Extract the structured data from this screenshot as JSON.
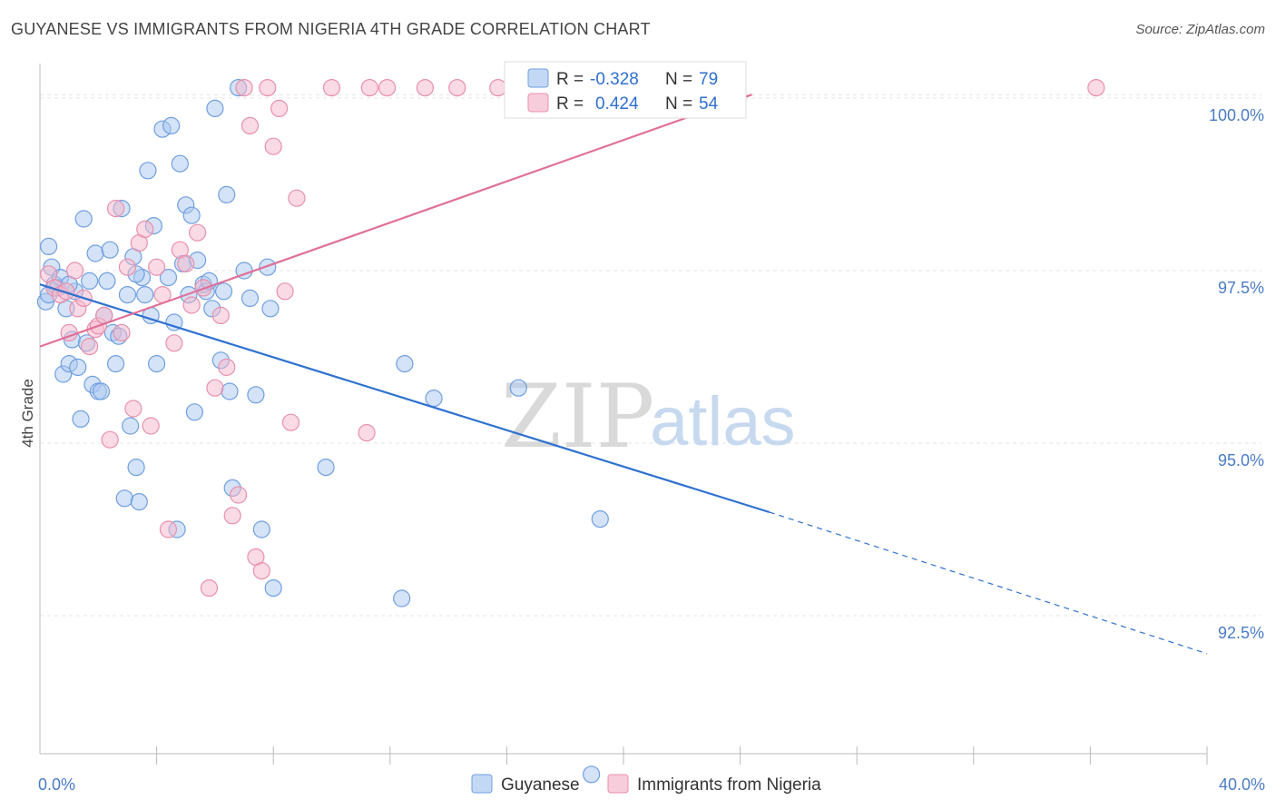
{
  "title": "GUYANESE VS IMMIGRANTS FROM NIGERIA 4TH GRADE CORRELATION CHART",
  "source": "Source: ZipAtlas.com",
  "watermark": {
    "zip": "ZIP",
    "atlas": "atlas"
  },
  "colors": {
    "blue_fill": "#aac8f0",
    "blue_stroke": "#6f9fe0",
    "blue_line": "#2f72d0",
    "pink_fill": "#f5b8cc",
    "pink_stroke": "#e890ac",
    "pink_line": "#e07098"
  },
  "legend": {
    "rows": [
      {
        "r_label": "R =",
        "r_value": "-0.328",
        "n_label": "N =",
        "n_value": "79"
      },
      {
        "r_label": "R =",
        "r_value": "0.424",
        "n_label": "N =",
        "n_value": "54"
      }
    ]
  },
  "chart_data": {
    "type": "scatter",
    "ylabel": "4th Grade",
    "xlim": [
      0,
      40
    ],
    "ylim": [
      90.5,
      100.5
    ],
    "x_tick_labels": [
      {
        "value": 0,
        "label": "0.0%"
      },
      {
        "value": 40,
        "label": "40.0%"
      }
    ],
    "x_minor_ticks": [
      4,
      8,
      12,
      16,
      20,
      24,
      28,
      32,
      36,
      40
    ],
    "y_ticks": [
      {
        "value": 100,
        "label": "100.0%"
      },
      {
        "value": 97.5,
        "label": "97.5%"
      },
      {
        "value": 95,
        "label": "95.0%"
      },
      {
        "value": 92.5,
        "label": "92.5%"
      }
    ],
    "series": [
      {
        "name": "Guyanese",
        "trend": {
          "x_start": 0,
          "y_start": 97.3,
          "x_solid_end": 25,
          "y_solid_end": 94.0,
          "x_end": 40,
          "y_end": 91.95
        },
        "points": [
          [
            0.2,
            97.05
          ],
          [
            0.3,
            97.85
          ],
          [
            0.4,
            97.55
          ],
          [
            0.5,
            97.3
          ],
          [
            0.6,
            97.25
          ],
          [
            0.7,
            97.4
          ],
          [
            0.8,
            96.0
          ],
          [
            0.9,
            96.95
          ],
          [
            1.0,
            96.15
          ],
          [
            1.1,
            96.5
          ],
          [
            1.2,
            97.2
          ],
          [
            1.3,
            96.1
          ],
          [
            1.4,
            95.35
          ],
          [
            1.5,
            98.25
          ],
          [
            1.6,
            96.45
          ],
          [
            1.7,
            97.35
          ],
          [
            1.8,
            95.85
          ],
          [
            1.9,
            97.75
          ],
          [
            2.0,
            95.75
          ],
          [
            2.1,
            95.75
          ],
          [
            2.3,
            97.35
          ],
          [
            2.4,
            97.8
          ],
          [
            2.5,
            96.6
          ],
          [
            2.6,
            96.15
          ],
          [
            2.7,
            96.55
          ],
          [
            2.8,
            98.4
          ],
          [
            2.9,
            94.2
          ],
          [
            3.0,
            97.15
          ],
          [
            3.1,
            95.25
          ],
          [
            3.2,
            97.7
          ],
          [
            3.3,
            94.65
          ],
          [
            3.4,
            94.15
          ],
          [
            3.5,
            97.4
          ],
          [
            3.6,
            97.15
          ],
          [
            3.7,
            98.95
          ],
          [
            3.8,
            96.85
          ],
          [
            3.9,
            98.15
          ],
          [
            4.0,
            96.15
          ],
          [
            4.2,
            99.55
          ],
          [
            4.4,
            97.4
          ],
          [
            4.6,
            96.75
          ],
          [
            4.7,
            93.75
          ],
          [
            4.8,
            99.05
          ],
          [
            4.9,
            97.6
          ],
          [
            5.0,
            98.45
          ],
          [
            5.1,
            97.15
          ],
          [
            5.2,
            98.3
          ],
          [
            5.3,
            95.45
          ],
          [
            5.4,
            97.65
          ],
          [
            5.6,
            97.3
          ],
          [
            5.7,
            97.2
          ],
          [
            5.8,
            97.35
          ],
          [
            5.9,
            96.95
          ],
          [
            6.0,
            99.85
          ],
          [
            6.2,
            96.2
          ],
          [
            6.3,
            97.2
          ],
          [
            6.4,
            98.6
          ],
          [
            6.5,
            95.75
          ],
          [
            6.6,
            94.35
          ],
          [
            6.8,
            100.15
          ],
          [
            7.0,
            97.5
          ],
          [
            7.2,
            97.1
          ],
          [
            7.4,
            95.7
          ],
          [
            7.6,
            93.75
          ],
          [
            7.8,
            97.55
          ],
          [
            7.9,
            96.95
          ],
          [
            8.0,
            92.9
          ],
          [
            9.8,
            94.65
          ],
          [
            12.5,
            96.15
          ],
          [
            12.4,
            92.75
          ],
          [
            13.5,
            95.65
          ],
          [
            16.4,
            95.8
          ],
          [
            19.2,
            93.9
          ],
          [
            18.9,
            90.2
          ],
          [
            0.3,
            97.15
          ],
          [
            1.0,
            97.3
          ],
          [
            2.2,
            96.85
          ],
          [
            3.3,
            97.45
          ],
          [
            4.5,
            99.6
          ]
        ]
      },
      {
        "name": "Immigrants from Nigeria",
        "trend": {
          "x_start": 0,
          "y_start": 96.4,
          "x_end": 24.4,
          "y_end": 100.05
        },
        "points": [
          [
            0.3,
            97.45
          ],
          [
            0.5,
            97.25
          ],
          [
            0.7,
            97.15
          ],
          [
            0.9,
            97.2
          ],
          [
            1.0,
            96.6
          ],
          [
            1.2,
            97.5
          ],
          [
            1.3,
            96.95
          ],
          [
            1.5,
            97.1
          ],
          [
            1.7,
            96.4
          ],
          [
            1.9,
            96.65
          ],
          [
            2.0,
            96.7
          ],
          [
            2.2,
            96.85
          ],
          [
            2.4,
            95.05
          ],
          [
            2.6,
            98.4
          ],
          [
            2.8,
            96.6
          ],
          [
            3.0,
            97.55
          ],
          [
            3.2,
            95.5
          ],
          [
            3.4,
            97.9
          ],
          [
            3.6,
            98.1
          ],
          [
            3.8,
            95.25
          ],
          [
            4.0,
            97.55
          ],
          [
            4.2,
            97.15
          ],
          [
            4.4,
            93.75
          ],
          [
            4.6,
            96.45
          ],
          [
            4.8,
            97.8
          ],
          [
            5.0,
            97.6
          ],
          [
            5.2,
            97.0
          ],
          [
            5.4,
            98.05
          ],
          [
            5.6,
            97.25
          ],
          [
            5.8,
            92.9
          ],
          [
            6.0,
            95.8
          ],
          [
            6.2,
            96.85
          ],
          [
            6.4,
            96.1
          ],
          [
            6.6,
            93.95
          ],
          [
            6.8,
            94.25
          ],
          [
            7.0,
            100.15
          ],
          [
            7.2,
            99.6
          ],
          [
            7.4,
            93.35
          ],
          [
            7.6,
            93.15
          ],
          [
            7.8,
            100.15
          ],
          [
            8.0,
            99.3
          ],
          [
            8.2,
            99.85
          ],
          [
            8.4,
            97.2
          ],
          [
            8.6,
            95.3
          ],
          [
            8.8,
            98.55
          ],
          [
            10.0,
            100.15
          ],
          [
            11.2,
            95.15
          ],
          [
            11.3,
            100.15
          ],
          [
            11.9,
            100.15
          ],
          [
            13.2,
            100.15
          ],
          [
            14.3,
            100.15
          ],
          [
            15.7,
            100.15
          ],
          [
            16.3,
            100.15
          ],
          [
            36.2,
            100.15
          ]
        ]
      }
    ]
  }
}
